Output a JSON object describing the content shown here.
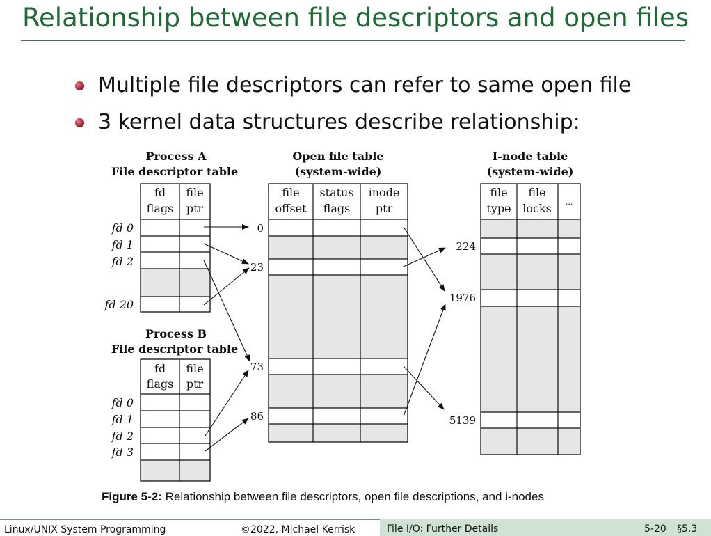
{
  "slide": {
    "title": "Relationship between file descriptors and open files",
    "bullets": [
      "Multiple file descriptors can refer to same open file",
      "3 kernel data structures describe relationship:"
    ]
  },
  "figure": {
    "process_a_title": "Process A",
    "process_a_subtitle": "File descriptor table",
    "process_b_title": "Process B",
    "process_b_subtitle": "File descriptor table",
    "fd_col_headers": [
      [
        "fd",
        "flags"
      ],
      [
        "file",
        "ptr"
      ]
    ],
    "open_file_title": "Open file table",
    "open_file_subtitle": "(system-wide)",
    "open_file_col_headers": [
      [
        "file",
        "offset"
      ],
      [
        "status",
        "flags"
      ],
      [
        "inode",
        "ptr"
      ]
    ],
    "inode_title": "I-node table",
    "inode_subtitle": "(system-wide)",
    "inode_col_headers": [
      [
        "file",
        "type"
      ],
      [
        "file",
        "locks"
      ],
      [
        "..."
      ]
    ],
    "process_a_fds": [
      "fd 0",
      "fd 1",
      "fd 2",
      "fd 20"
    ],
    "process_b_fds": [
      "fd 0",
      "fd 1",
      "fd 2",
      "fd 3"
    ],
    "open_file_indices": [
      "0",
      "23",
      "73",
      "86"
    ],
    "inode_numbers": [
      "224",
      "1976",
      "5139"
    ],
    "caption_label": "Figure 5-2:",
    "caption_text": " Relationship between file descriptors, open file descriptions, and i-nodes"
  },
  "footer": {
    "course": "Linux/UNIX System Programming",
    "copyright": "©2022, Michael Kerrisk",
    "section_title": "File I/O: Further Details",
    "page": "5-20",
    "section_number": "§5.3"
  },
  "colors": {
    "title_green": "#1a6b34",
    "footer_bar": "#cfe3d4",
    "shaded_cell": "#e6e6e6",
    "bullet_red": "#b0213c"
  }
}
